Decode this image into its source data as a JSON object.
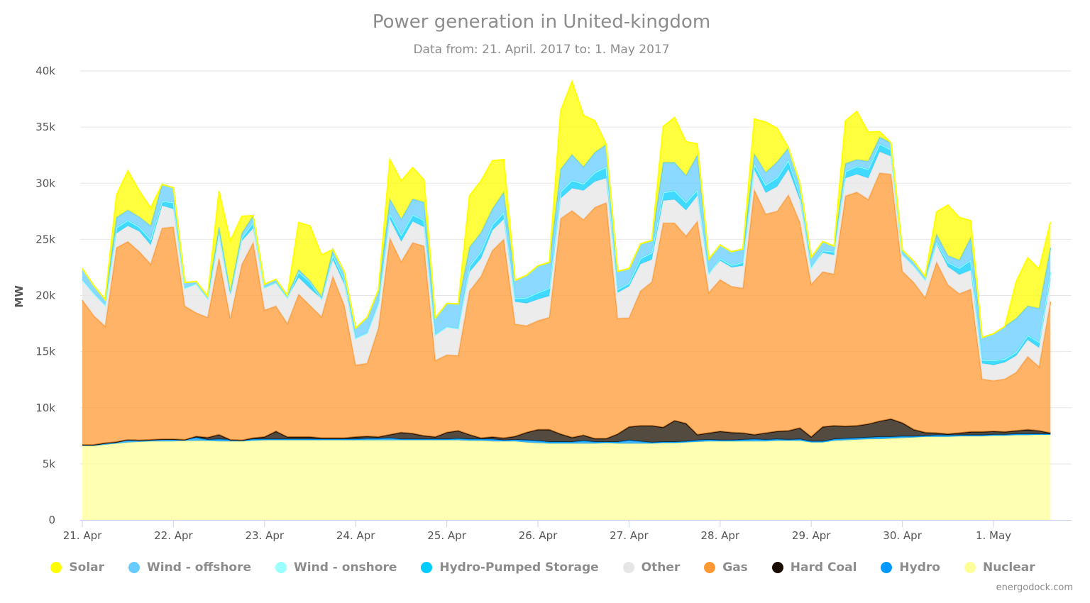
{
  "chart_data": {
    "type": "area",
    "stacked": true,
    "title": "Power generation in United-kingdom",
    "subtitle": "Data from: 21. April. 2017 to: 1. May 2017",
    "ylabel": "MW",
    "xlabel": "",
    "ylim": [
      0,
      40000
    ],
    "yticks": [
      0,
      5000,
      10000,
      15000,
      20000,
      25000,
      30000,
      35000,
      40000
    ],
    "ytick_labels": [
      "0",
      "5k",
      "10k",
      "15k",
      "20k",
      "25k",
      "30k",
      "35k",
      "40k"
    ],
    "x_start": "2017-04-21T00:00",
    "x_step_hours": 3,
    "xlim_days": [
      0,
      11
    ],
    "xticks_days": [
      0,
      1,
      2,
      3,
      4,
      5,
      6,
      7,
      8,
      9,
      10
    ],
    "xtick_labels": [
      "21. Apr",
      "22. Apr",
      "23. Apr",
      "24. Apr",
      "25. Apr",
      "26. Apr",
      "27. Apr",
      "28. Apr",
      "29. Apr",
      "30. Apr",
      "1. May"
    ],
    "grid": true,
    "legend_position": "bottom",
    "series": [
      {
        "name": "Nuclear",
        "color": "#ffff99",
        "values": [
          6600,
          6600,
          6700,
          6800,
          6900,
          6950,
          7000,
          7000,
          7000,
          7050,
          7050,
          7050,
          7000,
          7000,
          7000,
          7050,
          7100,
          7100,
          7100,
          7100,
          7100,
          7100,
          7100,
          7100,
          7100,
          7100,
          7100,
          7100,
          7100,
          7100,
          7100,
          7100,
          7100,
          7100,
          7050,
          7050,
          7000,
          7000,
          7000,
          6900,
          6850,
          6800,
          6800,
          6800,
          6800,
          6800,
          6850,
          6800,
          6800,
          6800,
          6800,
          6850,
          6850,
          6900,
          6950,
          7000,
          7000,
          7000,
          7000,
          7000,
          7000,
          7050,
          7050,
          7050,
          6900,
          6900,
          7050,
          7100,
          7150,
          7200,
          7200,
          7250,
          7300,
          7350,
          7400,
          7400,
          7400,
          7450,
          7450,
          7450,
          7500,
          7500,
          7550,
          7550,
          7600,
          7600
        ]
      },
      {
        "name": "Hydro",
        "color": "#0099ff",
        "values": [
          100,
          100,
          150,
          150,
          250,
          150,
          150,
          200,
          200,
          100,
          300,
          100,
          200,
          150,
          100,
          150,
          100,
          100,
          100,
          100,
          100,
          100,
          100,
          100,
          100,
          150,
          150,
          200,
          100,
          100,
          100,
          100,
          100,
          150,
          150,
          150,
          200,
          100,
          150,
          200,
          200,
          150,
          150,
          150,
          250,
          150,
          100,
          150,
          300,
          200,
          100,
          100,
          100,
          100,
          150,
          150,
          100,
          100,
          150,
          200,
          150,
          150,
          100,
          150,
          100,
          100,
          150,
          150,
          150,
          150,
          200,
          150,
          150,
          100,
          100,
          150,
          150,
          100,
          100,
          100,
          100,
          100,
          100,
          100,
          50,
          50
        ]
      },
      {
        "name": "Hard Coal",
        "color": "#1a0d00",
        "values": [
          0,
          0,
          0,
          0,
          0,
          0,
          0,
          0,
          0,
          0,
          100,
          200,
          400,
          0,
          0,
          100,
          200,
          700,
          200,
          200,
          200,
          100,
          100,
          100,
          200,
          200,
          150,
          300,
          600,
          500,
          300,
          200,
          600,
          700,
          400,
          100,
          200,
          200,
          300,
          700,
          1000,
          1100,
          700,
          400,
          500,
          300,
          300,
          700,
          1200,
          1400,
          1500,
          1300,
          1900,
          1600,
          500,
          600,
          800,
          700,
          600,
          400,
          600,
          700,
          800,
          1000,
          400,
          1300,
          1200,
          1100,
          1100,
          1200,
          1400,
          1600,
          1200,
          600,
          300,
          200,
          100,
          200,
          300,
          300,
          300,
          250,
          300,
          400,
          300,
          100
        ]
      },
      {
        "name": "Gas",
        "color": "#ff9933",
        "values": [
          12900,
          11500,
          10400,
          17300,
          17650,
          16800,
          15650,
          18800,
          18900,
          11900,
          11000,
          10700,
          15700,
          10800,
          15650,
          17400,
          11300,
          11150,
          10100,
          12700,
          11700,
          10800,
          14400,
          11800,
          6400,
          6500,
          9700,
          17500,
          15200,
          17000,
          16900,
          6800,
          6900,
          6700,
          12800,
          14400,
          16600,
          17700,
          10000,
          9500,
          9700,
          10000,
          19200,
          20200,
          19200,
          20600,
          21000,
          10300,
          9700,
          12000,
          12800,
          18200,
          17600,
          16700,
          19000,
          12500,
          13500,
          13000,
          12900,
          21800,
          19500,
          19600,
          21000,
          18300,
          13600,
          13800,
          13500,
          20500,
          20800,
          20000,
          22100,
          21800,
          13500,
          13100,
          12000,
          15200,
          13300,
          12400,
          12700,
          4700,
          4500,
          4700,
          5200,
          6500,
          5700,
          11700
        ]
      },
      {
        "name": "Other",
        "color": "#e6e6e6",
        "values": [
          1800,
          2000,
          1900,
          1300,
          1400,
          1800,
          1700,
          2000,
          1600,
          1600,
          2600,
          1700,
          2000,
          2200,
          2100,
          1300,
          2000,
          2100,
          2300,
          1500,
          1500,
          1600,
          1500,
          1900,
          2400,
          2700,
          2200,
          1700,
          1800,
          1900,
          1700,
          2300,
          2500,
          2400,
          1700,
          1600,
          1800,
          1800,
          2000,
          2000,
          1900,
          1900,
          1800,
          2000,
          2600,
          2300,
          2200,
          2300,
          2800,
          2400,
          2000,
          2000,
          2100,
          2300,
          2300,
          1700,
          1700,
          1700,
          2000,
          1800,
          1900,
          2200,
          2300,
          2000,
          1500,
          1700,
          1700,
          1600,
          1600,
          1900,
          1900,
          1600,
          1500,
          1500,
          1600,
          1600,
          1600,
          1700,
          1700,
          1400,
          1400,
          1500,
          1500,
          1500,
          1700,
          2000
        ]
      },
      {
        "name": "Hydro-Pumped Storage",
        "color": "#00ccff",
        "values": [
          0,
          0,
          0,
          500,
          500,
          400,
          500,
          400,
          600,
          0,
          0,
          0,
          300,
          0,
          300,
          500,
          0,
          0,
          0,
          500,
          600,
          0,
          400,
          400,
          0,
          0,
          0,
          500,
          600,
          600,
          600,
          0,
          0,
          0,
          500,
          600,
          500,
          600,
          300,
          500,
          600,
          700,
          600,
          700,
          600,
          800,
          1000,
          300,
          300,
          500,
          600,
          700,
          800,
          700,
          500,
          0,
          200,
          200,
          300,
          500,
          700,
          800,
          800,
          500,
          0,
          200,
          300,
          600,
          700,
          800,
          700,
          600,
          0,
          0,
          0,
          200,
          400,
          600,
          900,
          300,
          400,
          300,
          300,
          400,
          500,
          600
        ]
      },
      {
        "name": "Wind - onshore",
        "color": "#99ffff",
        "values": [
          0,
          0,
          0,
          0,
          0,
          0,
          0,
          0,
          0,
          0,
          0,
          0,
          0,
          0,
          0,
          0,
          0,
          0,
          0,
          0,
          0,
          0,
          0,
          0,
          0,
          0,
          0,
          0,
          0,
          0,
          0,
          0,
          0,
          0,
          0,
          0,
          0,
          0,
          0,
          0,
          0,
          0,
          0,
          0,
          0,
          0,
          0,
          0,
          0,
          0,
          0,
          0,
          0,
          0,
          0,
          0,
          0,
          0,
          0,
          0,
          0,
          0,
          0,
          0,
          0,
          0,
          0,
          0,
          0,
          0,
          0,
          0,
          0,
          0,
          0,
          0,
          0,
          0,
          0,
          0,
          0,
          0,
          0,
          0,
          0,
          0
        ]
      },
      {
        "name": "Wind - offshore",
        "color": "#66ccff",
        "values": [
          1000,
          700,
          500,
          900,
          900,
          900,
          1200,
          1500,
          1300,
          500,
          200,
          200,
          500,
          200,
          400,
          600,
          300,
          300,
          200,
          200,
          100,
          200,
          500,
          700,
          900,
          1400,
          1200,
          1300,
          1400,
          1400,
          1600,
          1500,
          2100,
          2200,
          1700,
          1700,
          1400,
          1800,
          1600,
          2000,
          2400,
          2300,
          2000,
          2300,
          1500,
          1800,
          2000,
          1600,
          1300,
          1300,
          1100,
          2700,
          2500,
          2400,
          3100,
          1300,
          1200,
          1200,
          1200,
          900,
          1100,
          1400,
          1100,
          1000,
          900,
          800,
          500,
          700,
          600,
          700,
          600,
          600,
          400,
          400,
          300,
          700,
          600,
          700,
          2000,
          2000,
          2400,
          2900,
          3000,
          2600,
          3000,
          2200
        ]
      },
      {
        "name": "Solar",
        "color": "#ffff00",
        "values": [
          0,
          0,
          0,
          2000,
          3500,
          2300,
          1600,
          0,
          0,
          0,
          0,
          0,
          3200,
          4500,
          1500,
          0,
          0,
          0,
          0,
          4200,
          4900,
          3700,
          0,
          0,
          0,
          0,
          0,
          3500,
          3400,
          2800,
          2000,
          0,
          0,
          0,
          4600,
          4600,
          4300,
          2900,
          0,
          0,
          0,
          0,
          5200,
          6500,
          4600,
          2800,
          0,
          0,
          0,
          0,
          0,
          3200,
          4000,
          3000,
          1000,
          0,
          0,
          0,
          0,
          3100,
          4500,
          3000,
          0,
          0,
          0,
          0,
          0,
          3800,
          4300,
          2600,
          500,
          0,
          0,
          0,
          0,
          2000,
          4500,
          3800,
          1500,
          0,
          0,
          0,
          3300,
          4300,
          3500,
          2300
        ]
      }
    ]
  },
  "credit": "energodock.com"
}
